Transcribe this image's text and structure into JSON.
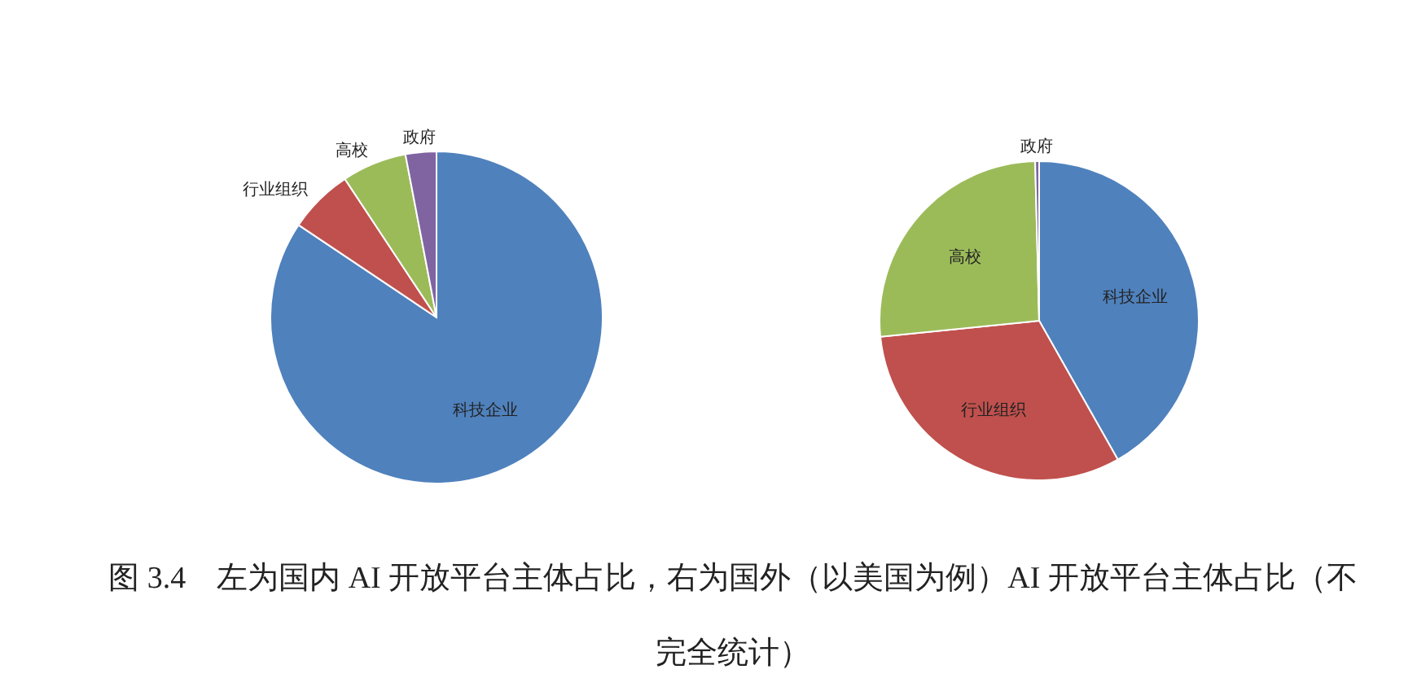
{
  "chart_data": [
    {
      "type": "pie",
      "categories": [
        "科技企业",
        "行业组织",
        "高校",
        "政府"
      ],
      "values": [
        84.4,
        6.3,
        6.3,
        3.0
      ],
      "colors": [
        "#4f81bd",
        "#c0504d",
        "#9bbb59",
        "#8064a2"
      ],
      "annotations": [
        "图 3.4　左为国内 AI 开放平台主体占比，右为国外（以美国为例）AI 开放平台主体占比（不完全统计）"
      ]
    },
    {
      "type": "pie",
      "categories": [
        "科技企业",
        "行业组织",
        "高校",
        "政府"
      ],
      "values": [
        41.8,
        31.6,
        26.2,
        0.4
      ],
      "colors": [
        "#4f81bd",
        "#c0504d",
        "#9bbb59",
        "#8064a2"
      ]
    }
  ]
}
